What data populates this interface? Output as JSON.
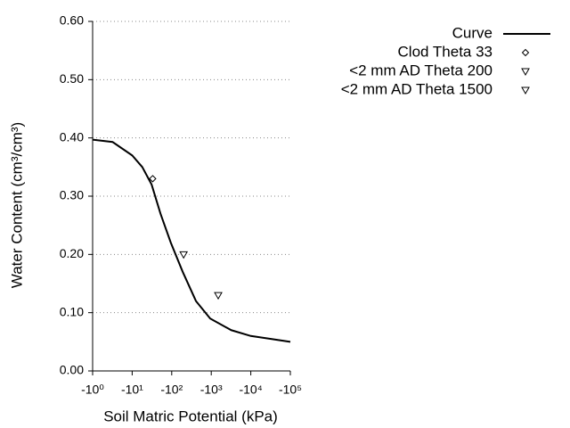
{
  "chart_data": {
    "type": "line",
    "x_label": "Soil Matric Potential (kPa)",
    "y_label": "Water Content (cm³/cm³)",
    "xscale": "log",
    "xlim": [
      1,
      100000
    ],
    "xticks": [
      {
        "value": 1,
        "label": "-10⁰"
      },
      {
        "value": 10,
        "label": "-10¹"
      },
      {
        "value": 100,
        "label": "-10²"
      },
      {
        "value": 1000,
        "label": "-10³"
      },
      {
        "value": 10000,
        "label": "-10⁴"
      },
      {
        "value": 100000,
        "label": "-10⁵"
      }
    ],
    "ylim": [
      0,
      0.6
    ],
    "yticks": [
      {
        "value": 0,
        "label": "0.00"
      },
      {
        "value": 0.1,
        "label": "0.10"
      },
      {
        "value": 0.2,
        "label": "0.20"
      },
      {
        "value": 0.3,
        "label": "0.30"
      },
      {
        "value": 0.4,
        "label": "0.40"
      },
      {
        "value": 0.5,
        "label": "0.50"
      },
      {
        "value": 0.6,
        "label": "0.60"
      }
    ],
    "grid": true,
    "series": [
      {
        "name": "Curve",
        "type": "line",
        "color": "#000000",
        "x": [
          1,
          3.2,
          10,
          18,
          31,
          52,
          95,
          190,
          410,
          940,
          3200,
          10000,
          100000
        ],
        "values": [
          0.397,
          0.393,
          0.37,
          0.35,
          0.32,
          0.27,
          0.22,
          0.17,
          0.12,
          0.09,
          0.07,
          0.06,
          0.05
        ]
      },
      {
        "name": "Clod Theta 33",
        "type": "scatter",
        "marker": "diamond",
        "color": "#000000",
        "x": [
          33
        ],
        "values": [
          0.33
        ]
      },
      {
        "name": "<2 mm AD Theta 200",
        "type": "scatter",
        "marker": "triangle-down",
        "color": "#000000",
        "x": [
          200
        ],
        "values": [
          0.2
        ]
      },
      {
        "name": "<2 mm AD Theta 1500",
        "type": "scatter",
        "marker": "triangle-down",
        "color": "#000000",
        "x": [
          1500
        ],
        "values": [
          0.13
        ]
      }
    ]
  }
}
